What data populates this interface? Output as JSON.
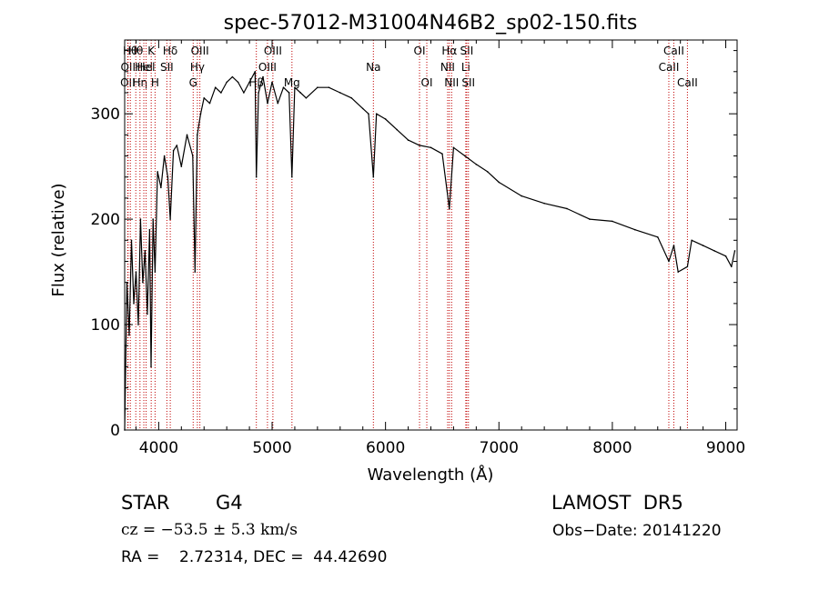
{
  "chart_data": {
    "type": "line",
    "title": "spec-57012-M31004N46B2_sp02-150.fits",
    "xlabel": "Wavelength (Å)",
    "ylabel": "Flux (relative)",
    "xlim": [
      3700,
      9100
    ],
    "ylim": [
      0,
      370
    ],
    "x_ticks": [
      4000,
      5000,
      6000,
      7000,
      8000,
      9000
    ],
    "y_ticks": [
      0,
      100,
      200,
      300
    ],
    "grid": false,
    "series": [
      {
        "x": [
          3700,
          3720,
          3740,
          3760,
          3780,
          3800,
          3820,
          3840,
          3860,
          3880,
          3900,
          3920,
          3933,
          3950,
          3968,
          3990,
          4020,
          4050,
          4080,
          4102,
          4130,
          4160,
          4200,
          4250,
          4300,
          4320,
          4340,
          4370,
          4400,
          4450,
          4500,
          4550,
          4600,
          4650,
          4700,
          4750,
          4800,
          4850,
          4861,
          4880,
          4920,
          4960,
          5000,
          5050,
          5100,
          5150,
          5175,
          5200,
          5250,
          5300,
          5400,
          5500,
          5600,
          5700,
          5800,
          5850,
          5893,
          5920,
          6000,
          6100,
          6200,
          6300,
          6400,
          6500,
          6563,
          6600,
          6700,
          6800,
          6900,
          7000,
          7200,
          7400,
          7600,
          7800,
          8000,
          8200,
          8400,
          8498,
          8542,
          8580,
          8662,
          8700,
          8800,
          8900,
          9000,
          9050,
          9080
        ],
        "values": [
          0,
          140,
          90,
          180,
          120,
          150,
          100,
          200,
          140,
          170,
          110,
          190,
          60,
          200,
          150,
          245,
          230,
          260,
          240,
          200,
          265,
          270,
          250,
          280,
          260,
          150,
          280,
          300,
          315,
          310,
          325,
          320,
          330,
          335,
          330,
          320,
          330,
          340,
          240,
          320,
          335,
          310,
          330,
          310,
          325,
          320,
          240,
          325,
          320,
          315,
          325,
          325,
          320,
          315,
          305,
          300,
          240,
          300,
          295,
          285,
          275,
          270,
          268,
          262,
          210,
          268,
          260,
          252,
          245,
          235,
          222,
          215,
          210,
          200,
          198,
          190,
          183,
          160,
          175,
          150,
          155,
          180,
          175,
          170,
          165,
          155,
          170
        ]
      }
    ],
    "lines": [
      {
        "x": 3727,
        "label": "OII",
        "row": 2
      },
      {
        "x": 3730,
        "label": "OII",
        "row": 1
      },
      {
        "x": 3750,
        "label": "Hθ",
        "row": 0
      },
      {
        "x": 3798,
        "label": "Hθ",
        "row": 0
      },
      {
        "x": 3835,
        "label": "Hη",
        "row": 2
      },
      {
        "x": 3869,
        "label": "Hel",
        "row": 1
      },
      {
        "x": 3889,
        "label": "Hel",
        "row": 1
      },
      {
        "x": 3934,
        "label": "K",
        "row": 0
      },
      {
        "x": 3968,
        "label": "H",
        "row": 2
      },
      {
        "x": 4072,
        "label": "SII",
        "row": 1
      },
      {
        "x": 4102,
        "label": "Hδ",
        "row": 0
      },
      {
        "x": 4304,
        "label": "G",
        "row": 2
      },
      {
        "x": 4341,
        "label": "Hγ",
        "row": 1
      },
      {
        "x": 4363,
        "label": "OIII",
        "row": 0
      },
      {
        "x": 4861,
        "label": "Hβ",
        "row": 2
      },
      {
        "x": 4959,
        "label": "OIII",
        "row": 1
      },
      {
        "x": 5007,
        "label": "OIII",
        "row": 0
      },
      {
        "x": 5175,
        "label": "Mg",
        "row": 2
      },
      {
        "x": 5893,
        "label": "Na",
        "row": 1
      },
      {
        "x": 6300,
        "label": "OI",
        "row": 0
      },
      {
        "x": 6364,
        "label": "OI",
        "row": 2
      },
      {
        "x": 6548,
        "label": "NII",
        "row": 1
      },
      {
        "x": 6563,
        "label": "Hα",
        "row": 0
      },
      {
        "x": 6583,
        "label": "NII",
        "row": 2
      },
      {
        "x": 6708,
        "label": "Li",
        "row": 1
      },
      {
        "x": 6716,
        "label": "SII",
        "row": 0
      },
      {
        "x": 6731,
        "label": "SII",
        "row": 2
      },
      {
        "x": 8498,
        "label": "CaII",
        "row": 1
      },
      {
        "x": 8542,
        "label": "CaII",
        "row": 0
      },
      {
        "x": 8662,
        "label": "CaII",
        "row": 2
      }
    ]
  },
  "info": {
    "class_label": "STAR",
    "subclass": "G4",
    "cz": "cz = −53.5 ± 5.3 km/s",
    "coords": "RA =    2.72314, DEC =  44.42690",
    "survey": "LAMOST  DR5",
    "obs_date": "Obs−Date: 20141220"
  }
}
